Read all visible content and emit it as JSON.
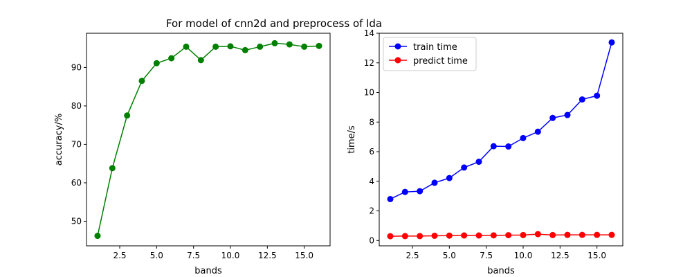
{
  "chart_data": [
    {
      "type": "line",
      "title": "For model of cnn2d and preprocess of lda",
      "xlabel": "bands",
      "ylabel": "accuracy/%",
      "xlim": [
        0.25,
        16.75
      ],
      "ylim": [
        43.6,
        98.9
      ],
      "xticks": [
        2.5,
        5.0,
        7.5,
        10.0,
        12.5,
        15.0
      ],
      "xtick_labels": [
        "2.5",
        "5.0",
        "7.5",
        "10.0",
        "12.5",
        "15.0"
      ],
      "yticks": [
        50,
        60,
        70,
        80,
        90
      ],
      "ytick_labels": [
        "50",
        "60",
        "70",
        "80",
        "90"
      ],
      "grid": false,
      "x": [
        1,
        2,
        3,
        4,
        5,
        6,
        7,
        8,
        9,
        10,
        11,
        12,
        13,
        14,
        15,
        16
      ],
      "series": [
        {
          "name": "",
          "color": "#008000",
          "values": [
            46.2,
            63.8,
            77.5,
            86.5,
            91.1,
            92.4,
            95.4,
            91.9,
            95.4,
            95.5,
            94.5,
            95.4,
            96.3,
            96.0,
            95.4,
            95.6
          ]
        }
      ]
    },
    {
      "type": "line",
      "title": "",
      "xlabel": "bands",
      "ylabel": "time/s",
      "xlim": [
        0.25,
        16.75
      ],
      "ylim": [
        -0.36,
        14.0
      ],
      "xticks": [
        2.5,
        5.0,
        7.5,
        10.0,
        12.5,
        15.0
      ],
      "xtick_labels": [
        "2.5",
        "5.0",
        "7.5",
        "10.0",
        "12.5",
        "15.0"
      ],
      "yticks": [
        0,
        2,
        4,
        6,
        8,
        10,
        12,
        14
      ],
      "ytick_labels": [
        "0",
        "2",
        "4",
        "6",
        "8",
        "10",
        "12",
        "14"
      ],
      "grid": false,
      "legend": "top-left",
      "x": [
        1,
        2,
        3,
        4,
        5,
        6,
        7,
        8,
        9,
        10,
        11,
        12,
        13,
        14,
        15,
        16
      ],
      "series": [
        {
          "name": "train time",
          "color": "#0000ff",
          "values": [
            2.8,
            3.28,
            3.33,
            3.9,
            4.22,
            4.93,
            5.32,
            6.37,
            6.35,
            6.92,
            7.35,
            8.28,
            8.48,
            9.53,
            9.78,
            13.38
          ]
        },
        {
          "name": "predict time",
          "color": "#ff0000",
          "values": [
            0.29,
            0.3,
            0.3,
            0.32,
            0.33,
            0.34,
            0.34,
            0.35,
            0.36,
            0.37,
            0.43,
            0.37,
            0.38,
            0.38,
            0.38,
            0.38
          ]
        }
      ]
    }
  ]
}
